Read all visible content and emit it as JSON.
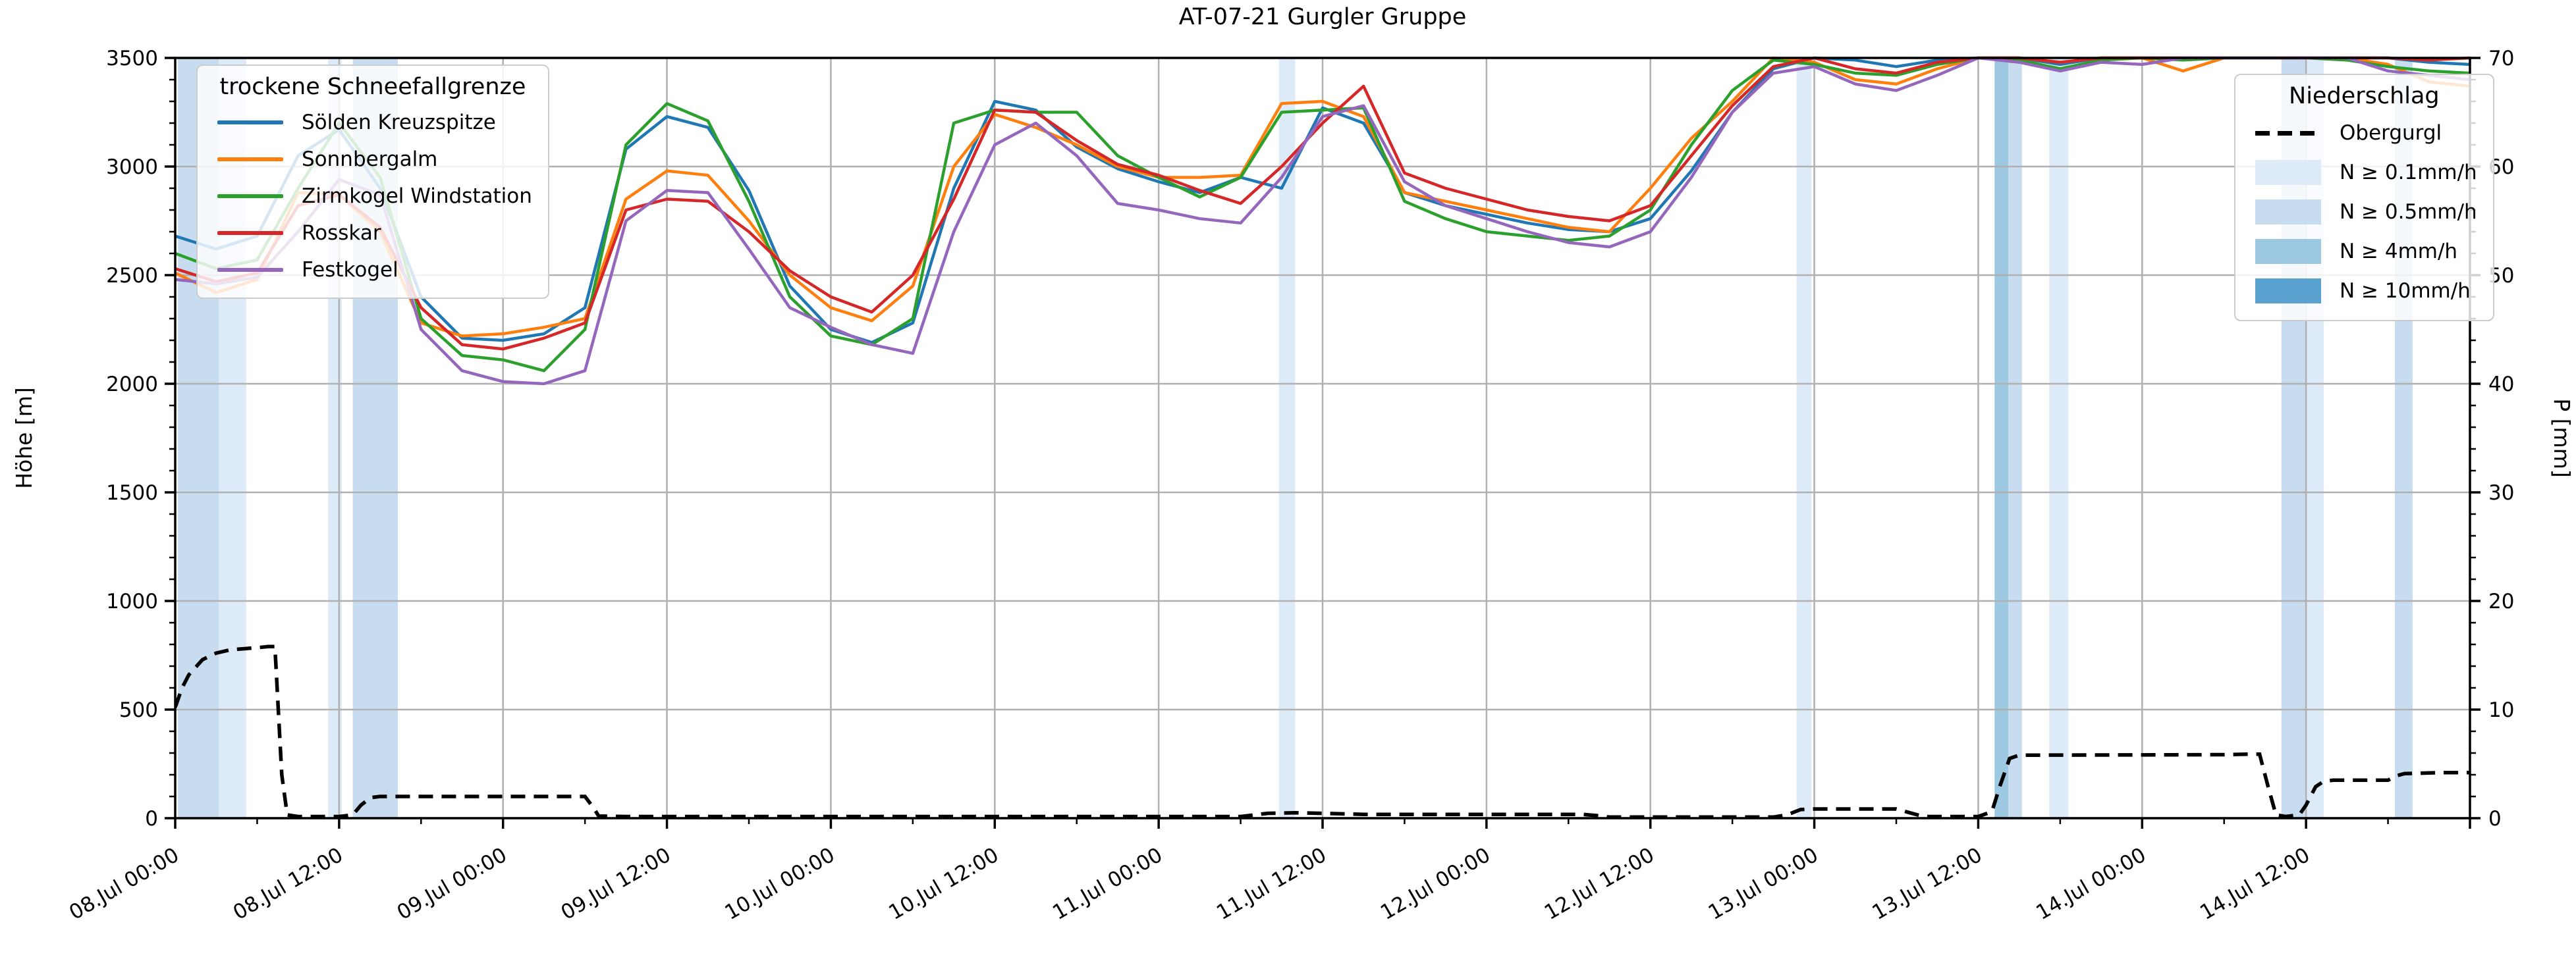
{
  "title": "AT-07-21 Gurgler Gruppe",
  "left_axis": {
    "label": "Höhe [m]",
    "min": 0,
    "max": 3500,
    "major_step": 500,
    "minor_step": 100,
    "tick_labels": [
      "0",
      "500",
      "1000",
      "1500",
      "2000",
      "2500",
      "3000",
      "3500"
    ]
  },
  "right_axis": {
    "label": "P [mm]",
    "min": 0,
    "max": 70,
    "major_step": 10,
    "minor_step": 2,
    "tick_labels": [
      "0",
      "10",
      "20",
      "30",
      "40",
      "50",
      "60",
      "70"
    ]
  },
  "x_axis": {
    "total_hours": 168,
    "major_step_hours": 12,
    "minor_step_hours": 6,
    "tick_labels": [
      "08.Jul 00:00",
      "08.Jul 12:00",
      "09.Jul 00:00",
      "09.Jul 12:00",
      "10.Jul 00:00",
      "10.Jul 12:00",
      "11.Jul 00:00",
      "11.Jul 12:00",
      "12.Jul 00:00",
      "12.Jul 12:00",
      "13.Jul 00:00",
      "13.Jul 12:00",
      "14.Jul 00:00",
      "14.Jul 12:00"
    ]
  },
  "legend_snowline": {
    "title": "trockene Schneefallgrenze",
    "items": [
      {
        "label": "Sölden Kreuzspitze",
        "color": "#1f77b4"
      },
      {
        "label": "Sonnbergalm",
        "color": "#ff7f0e"
      },
      {
        "label": "Zirmkogel Windstation",
        "color": "#2ca02c"
      },
      {
        "label": "Rosskar",
        "color": "#d62728"
      },
      {
        "label": "Festkogel",
        "color": "#9467bd"
      }
    ]
  },
  "legend_precip": {
    "title": "Niederschlag",
    "items": [
      {
        "label": "Obergurgl",
        "type": "dashed-line",
        "color": "#000000"
      },
      {
        "label": "N ≥ 0.1mm/h",
        "type": "patch",
        "color": "#ddeaf7"
      },
      {
        "label": "N ≥ 0.5mm/h",
        "type": "patch",
        "color": "#c7dcef"
      },
      {
        "label": "N ≥ 4mm/h",
        "type": "patch",
        "color": "#9dc8e2"
      },
      {
        "label": "N ≥ 10mm/h",
        "type": "patch",
        "color": "#59a1cf"
      }
    ]
  },
  "chart_data": {
    "type": "line",
    "title": "AT-07-21 Gurgler Gruppe",
    "xlabel": "",
    "ylabel_left": "Höhe [m]",
    "ylabel_right": "P [mm]",
    "ylim_left": [
      0,
      3500
    ],
    "ylim_right": [
      0,
      70
    ],
    "x_range_hours": [
      0,
      168
    ],
    "x_start_label": "08.Jul 00:00",
    "grid": "on",
    "legend_positions": [
      "upper left",
      "upper right"
    ],
    "x_hours": [
      0,
      3,
      6,
      9,
      12,
      15,
      18,
      21,
      24,
      27,
      30,
      33,
      36,
      39,
      42,
      45,
      48,
      51,
      54,
      57,
      60,
      63,
      66,
      69,
      72,
      75,
      78,
      81,
      84,
      87,
      90,
      93,
      96,
      99,
      102,
      105,
      108,
      111,
      114,
      117,
      120,
      123,
      126,
      129,
      132,
      135,
      138,
      141,
      144,
      147,
      150,
      153,
      156,
      159,
      162,
      165,
      168
    ],
    "series": [
      {
        "name": "Sölden Kreuzspitze",
        "color": "#1f77b4",
        "values": [
          2680,
          2620,
          2680,
          3050,
          3170,
          2900,
          2400,
          2210,
          2200,
          2230,
          2350,
          3080,
          3230,
          3180,
          2890,
          2450,
          2250,
          2190,
          2280,
          2900,
          3300,
          3260,
          3090,
          2990,
          2930,
          2880,
          2950,
          2900,
          3270,
          3200,
          2880,
          2820,
          2780,
          2740,
          2710,
          2700,
          2760,
          2980,
          3250,
          3450,
          3500,
          3490,
          3460,
          3490,
          3500,
          3500,
          3470,
          3500,
          3500,
          3500,
          3500,
          3500,
          3500,
          3500,
          3500,
          3480,
          3470
        ]
      },
      {
        "name": "Sonnbergalm",
        "color": "#ff7f0e",
        "values": [
          2510,
          2420,
          2480,
          2880,
          2870,
          2700,
          2280,
          2220,
          2230,
          2260,
          2300,
          2850,
          2980,
          2960,
          2750,
          2500,
          2350,
          2290,
          2450,
          3000,
          3240,
          3180,
          3100,
          3000,
          2950,
          2950,
          2960,
          3290,
          3300,
          3230,
          2880,
          2840,
          2800,
          2760,
          2720,
          2700,
          2900,
          3130,
          3300,
          3500,
          3480,
          3400,
          3380,
          3450,
          3500,
          3500,
          3480,
          3500,
          3500,
          3440,
          3500,
          3500,
          3500,
          3500,
          3470,
          3390,
          3370
        ]
      },
      {
        "name": "Zirmkogel Windstation",
        "color": "#2ca02c",
        "values": [
          2600,
          2530,
          2570,
          2900,
          3200,
          2950,
          2300,
          2130,
          2110,
          2060,
          2250,
          3100,
          3290,
          3210,
          2840,
          2400,
          2220,
          2180,
          2300,
          3200,
          3260,
          3250,
          3250,
          3050,
          2950,
          2860,
          2950,
          3250,
          3260,
          3270,
          2840,
          2760,
          2700,
          2680,
          2660,
          2680,
          2800,
          3100,
          3350,
          3490,
          3470,
          3430,
          3420,
          3470,
          3500,
          3490,
          3450,
          3490,
          3500,
          3490,
          3500,
          3500,
          3500,
          3490,
          3460,
          3440,
          3430
        ]
      },
      {
        "name": "Rosskar",
        "color": "#d62728",
        "values": [
          2530,
          2470,
          2510,
          2820,
          2870,
          2720,
          2350,
          2180,
          2160,
          2210,
          2280,
          2800,
          2850,
          2840,
          2700,
          2520,
          2400,
          2330,
          2500,
          2850,
          3260,
          3250,
          3120,
          3010,
          2960,
          2890,
          2830,
          3000,
          3200,
          3370,
          2970,
          2900,
          2850,
          2800,
          2770,
          2750,
          2820,
          3050,
          3280,
          3460,
          3500,
          3450,
          3430,
          3480,
          3500,
          3500,
          3480,
          3500,
          3500,
          3500,
          3500,
          3500,
          3500,
          3500,
          3500,
          3490,
          3500
        ]
      },
      {
        "name": "Festkogel",
        "color": "#9467bd",
        "values": [
          2480,
          2460,
          2490,
          2700,
          2940,
          2870,
          2250,
          2060,
          2010,
          2000,
          2060,
          2750,
          2890,
          2880,
          2620,
          2350,
          2260,
          2180,
          2140,
          2700,
          3100,
          3200,
          3050,
          2830,
          2800,
          2760,
          2740,
          2950,
          3230,
          3280,
          2930,
          2820,
          2760,
          2700,
          2650,
          2630,
          2700,
          2950,
          3250,
          3430,
          3460,
          3380,
          3350,
          3420,
          3500,
          3480,
          3440,
          3480,
          3470,
          3500,
          3500,
          3500,
          3500,
          3500,
          3440,
          3420,
          3400
        ]
      }
    ],
    "precip_line": {
      "name": "Obergurgl",
      "color": "#000000",
      "style": "dashed",
      "axis": "right",
      "unit": "mm",
      "points": [
        [
          0,
          10.2
        ],
        [
          0.5,
          12.0
        ],
        [
          1,
          13.2
        ],
        [
          2,
          14.6
        ],
        [
          3,
          15.2
        ],
        [
          4,
          15.5
        ],
        [
          5,
          15.6
        ],
        [
          6,
          15.7
        ],
        [
          6.8,
          15.8
        ],
        [
          7.3,
          15.8
        ],
        [
          7.8,
          4.0
        ],
        [
          8.2,
          0.3
        ],
        [
          9,
          0.15
        ],
        [
          12,
          0.15
        ],
        [
          13,
          0.3
        ],
        [
          13.6,
          1.2
        ],
        [
          14.3,
          1.9
        ],
        [
          15,
          2.0
        ],
        [
          30,
          2.0
        ],
        [
          30.6,
          1.0
        ],
        [
          31,
          0.2
        ],
        [
          33,
          0.15
        ],
        [
          78,
          0.15
        ],
        [
          79,
          0.3
        ],
        [
          80,
          0.45
        ],
        [
          82,
          0.5
        ],
        [
          84,
          0.45
        ],
        [
          87,
          0.35
        ],
        [
          103,
          0.35
        ],
        [
          104,
          0.25
        ],
        [
          105,
          0.1
        ],
        [
          117,
          0.1
        ],
        [
          118,
          0.3
        ],
        [
          119,
          0.8
        ],
        [
          120,
          0.85
        ],
        [
          126,
          0.85
        ],
        [
          127,
          0.5
        ],
        [
          128,
          0.15
        ],
        [
          132,
          0.15
        ],
        [
          133,
          0.6
        ],
        [
          133.6,
          3.0
        ],
        [
          134.3,
          5.5
        ],
        [
          135,
          5.8
        ],
        [
          150,
          5.85
        ],
        [
          152,
          5.9
        ],
        [
          152.6,
          5.9
        ],
        [
          153.2,
          3.0
        ],
        [
          153.8,
          0.3
        ],
        [
          154.5,
          0.15
        ],
        [
          155.5,
          0.3
        ],
        [
          156,
          1.2
        ],
        [
          156.7,
          2.9
        ],
        [
          157.3,
          3.4
        ],
        [
          158,
          3.5
        ],
        [
          162,
          3.5
        ],
        [
          162.6,
          3.9
        ],
        [
          163.2,
          4.1
        ],
        [
          166,
          4.2
        ],
        [
          168,
          4.2
        ]
      ]
    },
    "precip_bands": [
      {
        "start_hour": 0.2,
        "end_hour": 3.2,
        "level": "N ≥ 0.5mm/h",
        "color": "#c7dcef"
      },
      {
        "start_hour": 3.2,
        "end_hour": 5.2,
        "level": "N ≥ 0.1mm/h",
        "color": "#ddeaf7"
      },
      {
        "start_hour": 11.2,
        "end_hour": 12.2,
        "level": "N ≥ 0.1mm/h",
        "color": "#ddeaf7"
      },
      {
        "start_hour": 13.0,
        "end_hour": 16.3,
        "level": "N ≥ 0.5mm/h",
        "color": "#c7dcef"
      },
      {
        "start_hour": 80.8,
        "end_hour": 82.0,
        "level": "N ≥ 0.1mm/h",
        "color": "#ddeaf7"
      },
      {
        "start_hour": 118.7,
        "end_hour": 119.8,
        "level": "N ≥ 0.1mm/h",
        "color": "#ddeaf7"
      },
      {
        "start_hour": 133.2,
        "end_hour": 134.2,
        "level": "N ≥ 4mm/h",
        "color": "#9dc8e2"
      },
      {
        "start_hour": 134.2,
        "end_hour": 135.2,
        "level": "N ≥ 0.5mm/h",
        "color": "#c7dcef"
      },
      {
        "start_hour": 137.2,
        "end_hour": 138.6,
        "level": "N ≥ 0.1mm/h",
        "color": "#ddeaf7"
      },
      {
        "start_hour": 154.2,
        "end_hour": 156.0,
        "level": "N ≥ 0.5mm/h",
        "color": "#c7dcef"
      },
      {
        "start_hour": 156.0,
        "end_hour": 157.3,
        "level": "N ≥ 0.1mm/h",
        "color": "#ddeaf7"
      },
      {
        "start_hour": 162.5,
        "end_hour": 163.8,
        "level": "N ≥ 0.5mm/h",
        "color": "#c7dcef"
      }
    ]
  }
}
